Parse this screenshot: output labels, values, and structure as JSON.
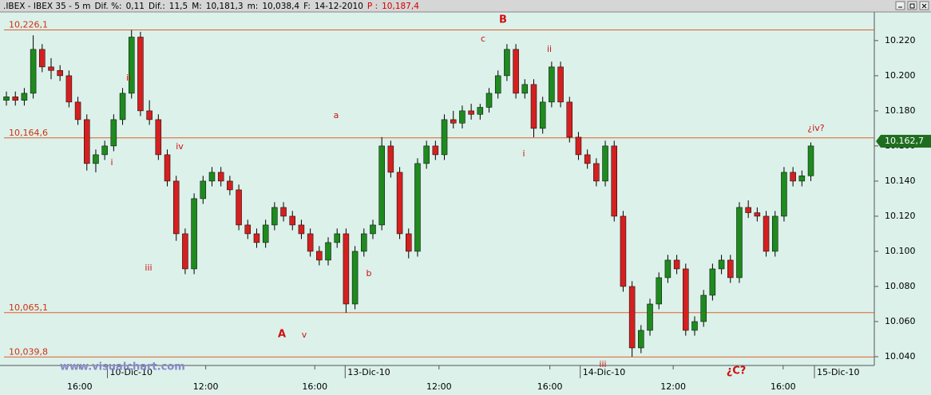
{
  "header": {
    "items": [
      ".IBEX - IBEX 35 - 5 m",
      "Dif. %:",
      "0,11",
      "Dif.:",
      "11,5",
      "M:",
      "10,181,3",
      "m:",
      "10,038,4",
      "F:",
      "14-12-2010",
      "P :",
      "10,187,4"
    ]
  },
  "chart_data": {
    "type": "candlestick",
    "watermark": "www.visualchart.com",
    "up_color": "#1f8a1f",
    "down_color": "#d42020",
    "xlim": [
      -0.27,
      97.1
    ],
    "xticks": [
      {
        "value": 8.2,
        "label": "16:00"
      },
      {
        "value": 11.3,
        "label": "10-Dic-10"
      },
      {
        "value": 22.3,
        "label": "12:00"
      },
      {
        "value": 34.5,
        "label": "16:00"
      },
      {
        "value": 37.9,
        "label": "13-Dic-10"
      },
      {
        "value": 48.4,
        "label": "12:00"
      },
      {
        "value": 60.8,
        "label": "16:00"
      },
      {
        "value": 64.2,
        "label": "14-Dic-10"
      },
      {
        "value": 74.6,
        "label": "12:00"
      },
      {
        "value": 86.9,
        "label": "16:00"
      },
      {
        "value": 90.4,
        "label": "15-Dic-10"
      }
    ],
    "ylim": [
      10035,
      10236.3
    ],
    "yticks": [
      {
        "value": 10040,
        "label": "10.040"
      },
      {
        "value": 10060,
        "label": "10.060"
      },
      {
        "value": 10080,
        "label": "10.080"
      },
      {
        "value": 10100,
        "label": "10.100"
      },
      {
        "value": 10120,
        "label": "10.120"
      },
      {
        "value": 10140,
        "label": "10.140"
      },
      {
        "value": 10160,
        "label": "10.160"
      },
      {
        "value": 10180,
        "label": "10.180"
      },
      {
        "value": 10200,
        "label": "10.200"
      },
      {
        "value": 10220,
        "label": "10.220"
      }
    ],
    "levels": [
      {
        "value": 10226.1,
        "label": "10,226,1"
      },
      {
        "value": 10164.6,
        "label": "10,164,6"
      },
      {
        "value": 10065.1,
        "label": "10,065,1"
      },
      {
        "value": 10039.8,
        "label": "10,039,8"
      }
    ],
    "last": {
      "value": 10162.7,
      "label": "10.162,7"
    },
    "annotations": [
      "B",
      "c",
      "ii",
      "a",
      "i",
      "b",
      "A",
      "v",
      "iii",
      "¿C?",
      "¿iv?",
      "i",
      "ii",
      "iv",
      "iii"
    ],
    "candles": [
      [
        10186,
        10191,
        10183,
        10188
      ],
      [
        10188,
        10191,
        10183,
        10186
      ],
      [
        10186,
        10193,
        10183,
        10190
      ],
      [
        10190,
        10223,
        10187,
        10215
      ],
      [
        10215,
        10218,
        10202,
        10205
      ],
      [
        10205,
        10210,
        10198,
        10203
      ],
      [
        10203,
        10206,
        10197,
        10200
      ],
      [
        10200,
        10203,
        10182,
        10185
      ],
      [
        10185,
        10188,
        10172,
        10175
      ],
      [
        10175,
        10178,
        10146,
        10150
      ],
      [
        10150,
        10158,
        10145,
        10155
      ],
      [
        10155,
        10163,
        10152,
        10160
      ],
      [
        10160,
        10178,
        10157,
        10175
      ],
      [
        10175,
        10193,
        10172,
        10190
      ],
      [
        10190,
        10226,
        10187,
        10222
      ],
      [
        10222,
        10225,
        10177,
        10180
      ],
      [
        10180,
        10186,
        10172,
        10175
      ],
      [
        10175,
        10178,
        10152,
        10155
      ],
      [
        10155,
        10158,
        10137,
        10140
      ],
      [
        10140,
        10143,
        10106,
        10110
      ],
      [
        10110,
        10113,
        10087,
        10090
      ],
      [
        10090,
        10133,
        10087,
        10130
      ],
      [
        10130,
        10143,
        10127,
        10140
      ],
      [
        10140,
        10148,
        10137,
        10145
      ],
      [
        10145,
        10148,
        10137,
        10140
      ],
      [
        10140,
        10143,
        10132,
        10135
      ],
      [
        10135,
        10138,
        10112,
        10115
      ],
      [
        10115,
        10118,
        10107,
        10110
      ],
      [
        10110,
        10113,
        10102,
        10105
      ],
      [
        10105,
        10118,
        10102,
        10115
      ],
      [
        10115,
        10128,
        10112,
        10125
      ],
      [
        10125,
        10128,
        10117,
        10120
      ],
      [
        10120,
        10123,
        10112,
        10115
      ],
      [
        10115,
        10118,
        10107,
        10110
      ],
      [
        10110,
        10113,
        10097,
        10100
      ],
      [
        10100,
        10103,
        10092,
        10095
      ],
      [
        10095,
        10108,
        10092,
        10105
      ],
      [
        10105,
        10113,
        10102,
        10110
      ],
      [
        10110,
        10113,
        10065,
        10070
      ],
      [
        10070,
        10103,
        10067,
        10100
      ],
      [
        10100,
        10113,
        10097,
        10110
      ],
      [
        10110,
        10118,
        10107,
        10115
      ],
      [
        10115,
        10165,
        10112,
        10160
      ],
      [
        10160,
        10163,
        10142,
        10145
      ],
      [
        10145,
        10148,
        10107,
        10110
      ],
      [
        10110,
        10113,
        10096,
        10100
      ],
      [
        10100,
        10153,
        10097,
        10150
      ],
      [
        10150,
        10163,
        10147,
        10160
      ],
      [
        10160,
        10163,
        10152,
        10155
      ],
      [
        10155,
        10178,
        10152,
        10175
      ],
      [
        10175,
        10180,
        10170,
        10173
      ],
      [
        10173,
        10183,
        10170,
        10180
      ],
      [
        10180,
        10184,
        10175,
        10178
      ],
      [
        10178,
        10184,
        10175,
        10182
      ],
      [
        10182,
        10193,
        10179,
        10190
      ],
      [
        10190,
        10203,
        10187,
        10200
      ],
      [
        10200,
        10218,
        10197,
        10215
      ],
      [
        10215,
        10218,
        10187,
        10190
      ],
      [
        10190,
        10198,
        10187,
        10195
      ],
      [
        10195,
        10198,
        10165,
        10170
      ],
      [
        10170,
        10188,
        10167,
        10185
      ],
      [
        10185,
        10208,
        10182,
        10205
      ],
      [
        10205,
        10208,
        10182,
        10185
      ],
      [
        10185,
        10188,
        10162,
        10165
      ],
      [
        10165,
        10168,
        10152,
        10155
      ],
      [
        10155,
        10158,
        10147,
        10150
      ],
      [
        10150,
        10153,
        10137,
        10140
      ],
      [
        10140,
        10163,
        10137,
        10160
      ],
      [
        10160,
        10163,
        10117,
        10120
      ],
      [
        10120,
        10123,
        10077,
        10080
      ],
      [
        10080,
        10083,
        10040,
        10045
      ],
      [
        10045,
        10058,
        10042,
        10055
      ],
      [
        10055,
        10073,
        10052,
        10070
      ],
      [
        10070,
        10088,
        10067,
        10085
      ],
      [
        10085,
        10098,
        10082,
        10095
      ],
      [
        10095,
        10098,
        10087,
        10090
      ],
      [
        10090,
        10093,
        10052,
        10055
      ],
      [
        10055,
        10063,
        10052,
        10060
      ],
      [
        10060,
        10078,
        10057,
        10075
      ],
      [
        10075,
        10093,
        10072,
        10090
      ],
      [
        10090,
        10098,
        10087,
        10095
      ],
      [
        10095,
        10098,
        10082,
        10085
      ],
      [
        10085,
        10128,
        10082,
        10125
      ],
      [
        10125,
        10129,
        10119,
        10122
      ],
      [
        10122,
        10125,
        10117,
        10120
      ],
      [
        10120,
        10123,
        10097,
        10100
      ],
      [
        10100,
        10123,
        10097,
        10120
      ],
      [
        10120,
        10148,
        10117,
        10145
      ],
      [
        10145,
        10148,
        10137,
        10140
      ],
      [
        10140,
        10146,
        10137,
        10143
      ],
      [
        10143,
        10162,
        10140,
        10160
      ]
    ]
  }
}
